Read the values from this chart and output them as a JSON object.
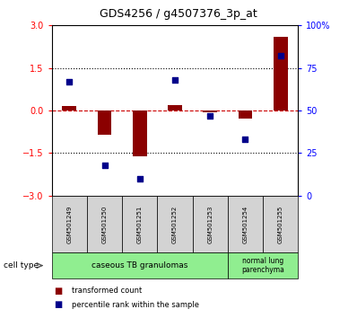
{
  "title": "GDS4256 / g4507376_3p_at",
  "samples": [
    "GSM501249",
    "GSM501250",
    "GSM501251",
    "GSM501252",
    "GSM501253",
    "GSM501254",
    "GSM501255"
  ],
  "transformed_count": [
    0.15,
    -0.85,
    -1.6,
    0.2,
    -0.05,
    -0.3,
    2.6
  ],
  "percentile_rank": [
    67,
    18,
    10,
    68,
    47,
    33,
    82
  ],
  "ylim_left": [
    -3,
    3
  ],
  "ylim_right": [
    0,
    100
  ],
  "yticks_left": [
    -3,
    -1.5,
    0,
    1.5,
    3
  ],
  "yticks_right": [
    0,
    25,
    50,
    75,
    100
  ],
  "bar_color_red": "#8B0000",
  "dot_color_blue": "#00008B",
  "zero_line_color": "#cc0000",
  "legend_red_label": "transformed count",
  "legend_blue_label": "percentile rank within the sample",
  "cell_type_label": "cell type",
  "ct1_label": "caseous TB granulomas",
  "ct1_count": 5,
  "ct2_label": "normal lung\nparenchyma",
  "ct2_count": 2,
  "cell_type_color": "#90EE90",
  "sample_box_color": "#d3d3d3"
}
